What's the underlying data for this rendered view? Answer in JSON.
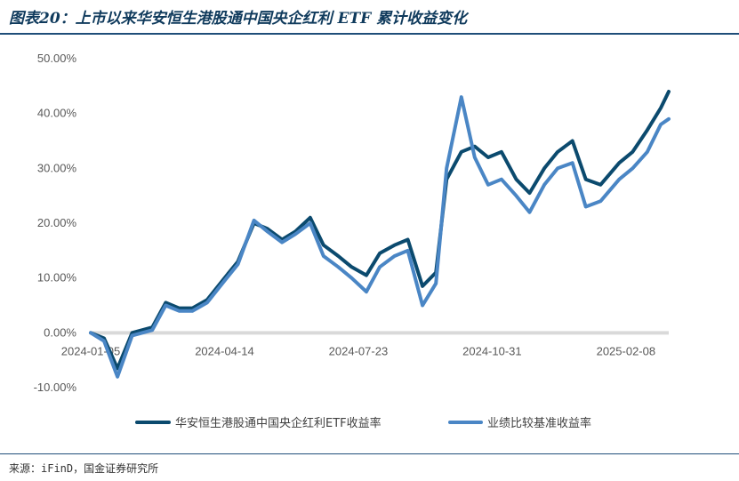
{
  "figure": {
    "title": "图表20：上市以来华安恒生港股通中国央企红利 ETF 累计收益变化",
    "source": "来源：iFinD，国金证券研究所"
  },
  "colors": {
    "series1": "#0b4a6e",
    "series2": "#4a86c5",
    "zero_line": "#d9d9d9",
    "rule": "#1f4e79"
  },
  "chart_data": {
    "type": "line",
    "title": "",
    "xlabel": "",
    "ylabel": "",
    "ylim": [
      -10,
      50
    ],
    "y_ticks": [
      "-10.00%",
      "0.00%",
      "10.00%",
      "20.00%",
      "30.00%",
      "40.00%",
      "50.00%"
    ],
    "y_tick_values": [
      -10,
      0,
      10,
      20,
      30,
      40,
      50
    ],
    "x_tick_labels": [
      "2024-01-05",
      "2024-04-14",
      "2024-07-23",
      "2024-10-31",
      "2025-02-08"
    ],
    "grid": false,
    "legend_position": "bottom",
    "x": [
      "2024-01-05",
      "2024-01-15",
      "2024-01-25",
      "2024-02-05",
      "2024-02-20",
      "2024-03-01",
      "2024-03-11",
      "2024-03-21",
      "2024-04-01",
      "2024-04-14",
      "2024-04-24",
      "2024-05-06",
      "2024-05-16",
      "2024-05-27",
      "2024-06-06",
      "2024-06-17",
      "2024-06-27",
      "2024-07-08",
      "2024-07-18",
      "2024-07-29",
      "2024-08-08",
      "2024-08-19",
      "2024-08-29",
      "2024-09-09",
      "2024-09-19",
      "2024-09-27",
      "2024-10-08",
      "2024-10-18",
      "2024-10-28",
      "2024-11-07",
      "2024-11-18",
      "2024-11-28",
      "2024-12-09",
      "2024-12-19",
      "2024-12-30",
      "2025-01-09",
      "2025-01-20",
      "2025-02-03",
      "2025-02-13",
      "2025-02-24",
      "2025-03-06",
      "2025-03-12"
    ],
    "series": [
      {
        "name": "华安恒生港股通中国央企红利ETF收益率",
        "values": [
          0,
          -1,
          -6.5,
          0,
          1,
          5.5,
          4.5,
          4.5,
          6,
          10,
          13,
          20,
          19,
          17,
          18.5,
          21,
          16,
          14,
          12,
          10.5,
          14.5,
          16,
          17,
          8.5,
          11,
          28,
          33,
          34,
          32,
          33,
          28,
          25.5,
          30,
          33,
          35,
          28,
          27,
          31,
          33,
          37,
          41,
          44
        ]
      },
      {
        "name": "业绩比较基准收益率",
        "values": [
          0,
          -1.5,
          -8,
          -0.5,
          0.5,
          5,
          4,
          4,
          5.5,
          9.5,
          12.5,
          20.5,
          18.5,
          16.5,
          18,
          20,
          14,
          12,
          10,
          7.5,
          12,
          14,
          15,
          5,
          9,
          30,
          43,
          32,
          27,
          28,
          25,
          22,
          27,
          30,
          31,
          23,
          24,
          28,
          30,
          33,
          38,
          39
        ]
      }
    ]
  }
}
